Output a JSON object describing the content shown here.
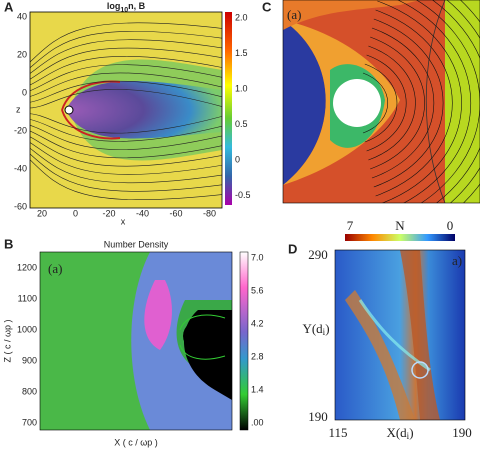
{
  "panel_a": {
    "label": "A",
    "title": {
      "base": "log",
      "sub": "10",
      "rest": "n, B"
    },
    "x_axis_label": "x",
    "y_axis_label": "z",
    "yticks": [
      40,
      20,
      0,
      -20,
      -40,
      -60
    ],
    "xticks": [
      20,
      0,
      -20,
      -40,
      -60,
      -80
    ],
    "colorbar_ticks": [
      "2.0",
      "1.5",
      "1.0",
      "0.5",
      0,
      -0.5
    ]
  },
  "panel_b": {
    "label": "B",
    "title": "Number Density",
    "inset_label": "(a)",
    "x_axis_label": "X ( c / ωp )",
    "y_axis_label": "Z ( c / ωp )",
    "yticks": [
      1200,
      1100,
      1000,
      900,
      800,
      700
    ],
    "colorbar_ticks": [
      "7.0",
      "5.6",
      "4.2",
      "2.8",
      "1.4",
      ".00"
    ]
  },
  "panel_c": {
    "label": "C",
    "inset_label": "(a)"
  },
  "panel_d": {
    "label": "D",
    "inset_label": "a)",
    "colorbar": {
      "left": 7,
      "middle": "N",
      "right": 0
    },
    "y_top": 290,
    "y_bottom": 190,
    "x_left": 115,
    "x_right": 190,
    "y_axis_label": {
      "base": "Y(d",
      "sub": "i",
      "rest": ")"
    },
    "x_axis_label": {
      "base": "X(d",
      "sub": "i",
      "rest": ")"
    }
  }
}
